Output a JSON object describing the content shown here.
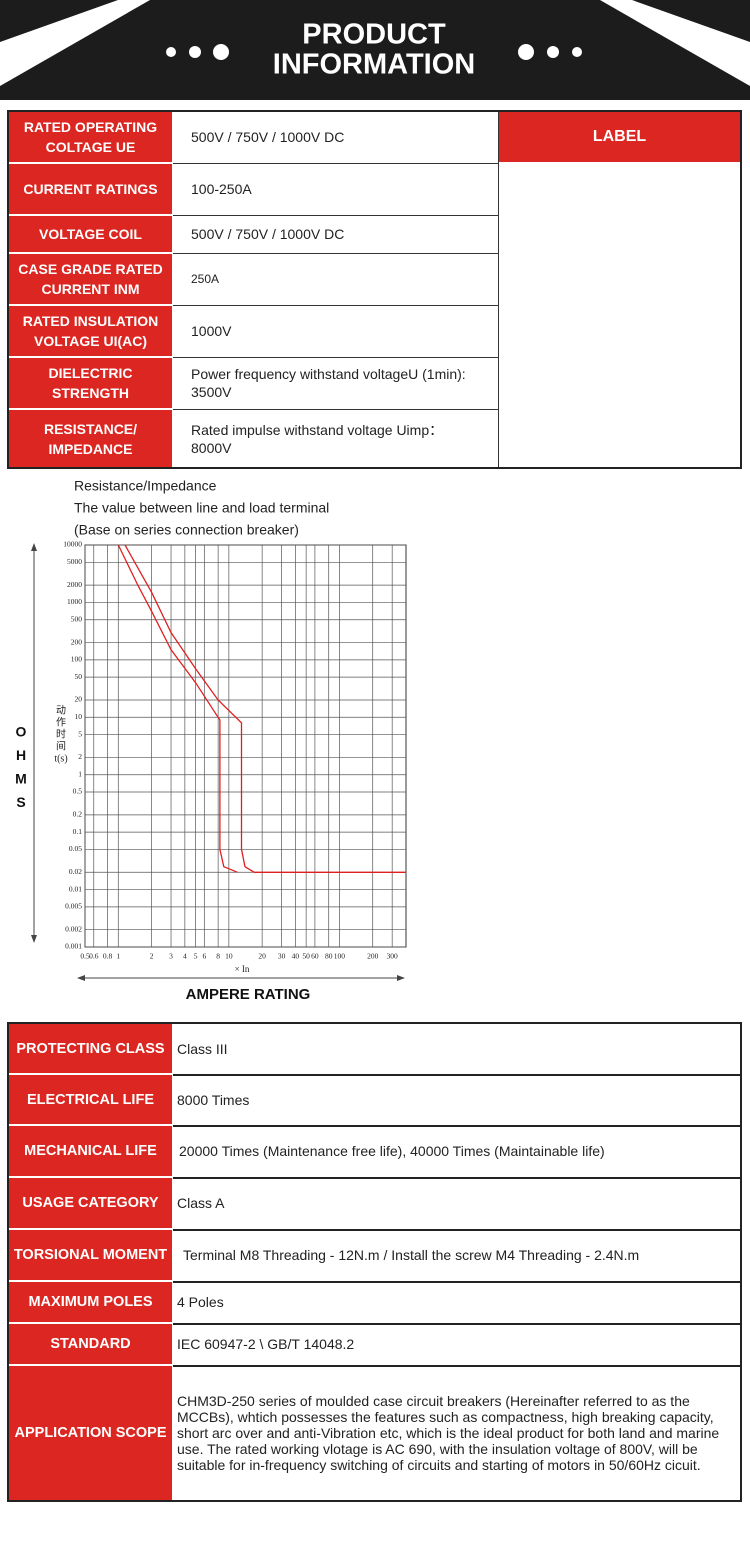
{
  "header": {
    "title_lines": [
      "PRODUCT",
      "INFORMATION"
    ]
  },
  "spec_table": {
    "label_header": "LABEL",
    "rows": [
      [
        "RATED OPERATING COLTAGE UE",
        "500V / 750V / 1000V DC"
      ],
      [
        "CURRENT RATINGS",
        "100-250A"
      ],
      [
        "VOLTAGE COIL",
        "500V / 750V / 1000V DC"
      ],
      [
        "CASE GRADE RATED CURRENT INM",
        "250A"
      ],
      [
        "RATED INSULATION VOLTAGE UI(AC)",
        "1000V"
      ],
      [
        "DIELECTRIC STRENGTH",
        "Power frequency withstand voltageU (1min): 3500V"
      ],
      [
        "RESISTANCE/ IMPEDANCE",
        "Rated impulse withstand voltage Uimp： 8000V"
      ]
    ]
  },
  "chart_data": {
    "type": "line",
    "notes": [
      "Resistance/Impedance",
      "The value between line and load terminal",
      "(Base on series connection breaker)"
    ],
    "y_label_lines": [
      "动",
      "作",
      "时",
      "间",
      "t(s)"
    ],
    "x_label": "× In",
    "side_label_letters": [
      "O",
      "H",
      "M",
      "S"
    ],
    "bottom_label": "AMPERE RATING",
    "log_x": true,
    "log_y": true,
    "grid": true,
    "xlim": [
      0.5,
      400
    ],
    "ylim": [
      0.001,
      10000
    ],
    "xticks": [
      0.5,
      0.6,
      0.8,
      1,
      2,
      3,
      4,
      5,
      6,
      8,
      10,
      20,
      30,
      40,
      50,
      60,
      80,
      100,
      200,
      300
    ],
    "yticks": [
      10000,
      5000,
      2000,
      1000,
      500,
      200,
      100,
      50,
      20,
      10,
      5,
      2,
      1,
      0.5,
      0.2,
      0.1,
      0.05,
      0.02,
      0.01,
      0.005,
      0.002,
      0.001
    ],
    "series": [
      {
        "color": "#e02020",
        "x": [
          1,
          1.5,
          2,
          3,
          5,
          8,
          8.3,
          8.3,
          9,
          12
        ],
        "values": [
          10000,
          2000,
          700,
          150,
          40,
          10,
          9,
          0.05,
          0.025,
          0.02
        ]
      },
      {
        "color": "#e02020",
        "x": [
          1.15,
          2,
          3,
          5,
          8,
          13,
          13,
          14,
          17,
          400
        ],
        "values": [
          10000,
          1500,
          300,
          70,
          20,
          8,
          0.05,
          0.025,
          0.02,
          0.02
        ]
      }
    ]
  },
  "details_table": {
    "rows": [
      [
        "PROTECTING CLASS",
        "Class III"
      ],
      [
        "ELECTRICAL LIFE",
        "8000 Times"
      ],
      [
        "MECHANICAL LIFE",
        "20000 Times (Maintenance free life), 40000 Times (Maintainable life)"
      ],
      [
        "USAGE CATEGORY",
        "Class A"
      ],
      [
        "TORSIONAL MOMENT",
        "Terminal M8 Threading - 12N.m / Install the screw M4 Threading - 2.4N.m"
      ],
      [
        "MAXIMUM POLES",
        "4 Poles"
      ],
      [
        "STANDARD",
        "IEC 60947-2 \\ GB/T 14048.2"
      ],
      [
        "APPLICATION SCOPE",
        "CHM3D-250 series of moulded case circuit breakers (Hereinafter referred to as the MCCBs), whtich possesses the features such as compactness, high breaking capacity, short arc over and anti-Vibration etc, which is the ideal product for both land and marine use. The rated working vlotage is AC 690, with the insulation voltage of 800V, will be suitable for in-frequency switching of circuits and starting of motors in 50/60Hz cicuit."
      ]
    ]
  }
}
